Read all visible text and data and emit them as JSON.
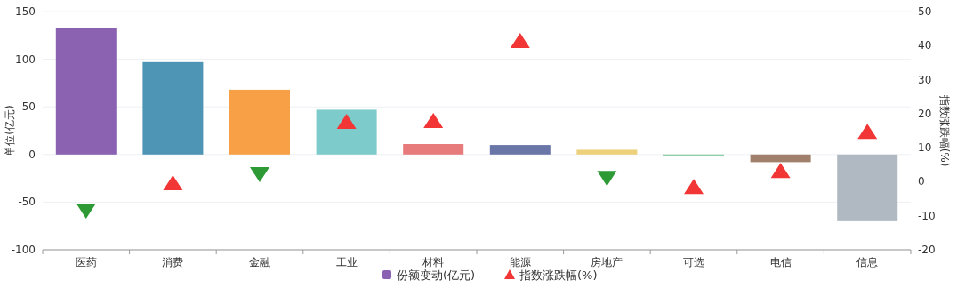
{
  "chart_data": {
    "type": "bar",
    "categories": [
      "医药",
      "消费",
      "金融",
      "工业",
      "材料",
      "能源",
      "房地产",
      "可选",
      "电信",
      "信息"
    ],
    "ylabel": "单位(亿元)",
    "y2label": "指数涨跌幅(%)",
    "ylim": [
      -100,
      150
    ],
    "yticks": [
      -100,
      -50,
      0,
      50,
      100,
      150
    ],
    "y2lim": [
      -20,
      50
    ],
    "y2ticks": [
      -20,
      -10,
      0,
      10,
      20,
      30,
      40,
      50
    ],
    "grid": "y",
    "legend": "bottom",
    "series": [
      {
        "name": "份额变动(亿元)",
        "colors": [
          "#8b61b1",
          "#4d94b5",
          "#f7a046",
          "#7ecbcb",
          "#e77a7a",
          "#6b76a8",
          "#ecd07a",
          "#7bc99a",
          "#a0806a",
          "#b0b8c2"
        ],
        "values": [
          133,
          97,
          68,
          47,
          11,
          10,
          5,
          -1,
          -8,
          -70
        ]
      },
      {
        "name": "指数涨跌幅(%)",
        "type": "scatter",
        "axis": "y2",
        "marker": "triangle",
        "color": "#f23535",
        "values": [
          null,
          -0.4,
          null,
          17.6,
          17.9,
          41.4,
          null,
          -1.5,
          3.2,
          14.7
        ]
      },
      {
        "type": "scatter",
        "axis": "y2",
        "marker": "triangle",
        "color": "#2e9a35",
        "values": [
          -8.5,
          null,
          2.2,
          null,
          null,
          null,
          1.1,
          null,
          null,
          null
        ]
      }
    ]
  }
}
